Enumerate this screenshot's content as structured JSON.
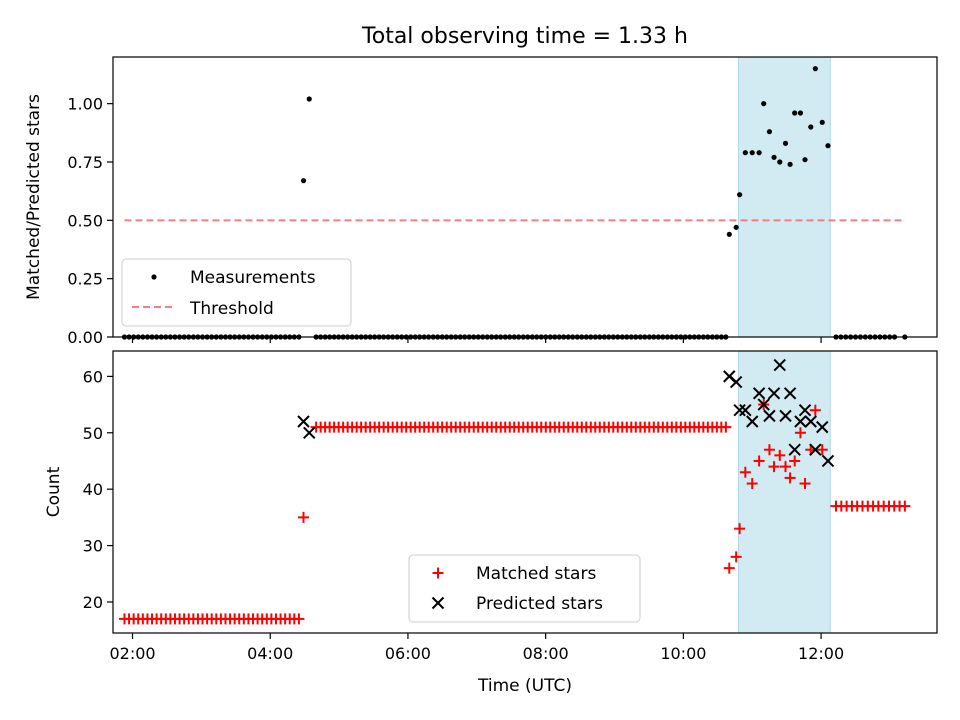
{
  "chart_data": [
    {
      "type": "scatter",
      "title": "Total observing time = 1.33 h",
      "ylabel": "Matched/Predicted stars",
      "xlabel": "",
      "xlim": [
        "01:43",
        "13:41"
      ],
      "ylim": [
        0,
        1.2
      ],
      "x_ticks": [
        "02:00",
        "04:00",
        "06:00",
        "08:00",
        "10:00",
        "12:00"
      ],
      "y_ticks": [
        "0.00",
        "0.25",
        "0.50",
        "0.75",
        "1.00"
      ],
      "x_tick_values": [
        "02:00",
        "04:00",
        "06:00",
        "08:00",
        "10:00",
        "12:00"
      ],
      "y_tick_values": [
        0,
        0.25,
        0.5,
        0.75,
        1.0
      ],
      "highlight_span": [
        "10:48",
        "12:08"
      ],
      "threshold": {
        "name": "Threshold",
        "y": 0.5,
        "x_range": [
          "01:53",
          "13:13"
        ],
        "color": "#f08080",
        "style": "dashed"
      },
      "legend": {
        "location": "lower-left",
        "entries": [
          "Measurements",
          "Threshold"
        ]
      },
      "series": [
        {
          "name": "Measurements",
          "marker": "dot",
          "color": "#000000",
          "zero_x_ranges": [
            [
              "01:53",
              "04:25",
              39
            ],
            [
              "04:40",
              "10:37",
              92
            ],
            [
              "12:13",
              "13:04",
              13
            ]
          ],
          "zero_points": [
            "13:13"
          ],
          "points": [
            [
              "04:29",
              0.67
            ],
            [
              "04:34",
              1.02
            ],
            [
              "10:40",
              0.44
            ],
            [
              "10:46",
              0.47
            ],
            [
              "10:49",
              0.61
            ],
            [
              "10:54",
              0.79
            ],
            [
              "11:00",
              0.79
            ],
            [
              "11:06",
              0.79
            ],
            [
              "11:10",
              1.0
            ],
            [
              "11:15",
              0.88
            ],
            [
              "11:19",
              0.77
            ],
            [
              "11:24",
              0.75
            ],
            [
              "11:29",
              0.83
            ],
            [
              "11:33",
              0.74
            ],
            [
              "11:37",
              0.96
            ],
            [
              "11:42",
              0.96
            ],
            [
              "11:46",
              0.76
            ],
            [
              "11:51",
              0.9
            ],
            [
              "11:55",
              1.15
            ],
            [
              "12:01",
              0.92
            ],
            [
              "12:06",
              0.82
            ]
          ]
        }
      ]
    },
    {
      "type": "scatter",
      "title": "",
      "ylabel": "Count",
      "xlabel": "Time (UTC)",
      "xlim": [
        "01:43",
        "13:41"
      ],
      "ylim": [
        14.5,
        64.5
      ],
      "x_ticks": [
        "02:00",
        "04:00",
        "06:00",
        "08:00",
        "10:00",
        "12:00"
      ],
      "y_ticks": [
        "20",
        "30",
        "40",
        "50",
        "60"
      ],
      "x_tick_values": [
        "02:00",
        "04:00",
        "06:00",
        "08:00",
        "10:00",
        "12:00"
      ],
      "y_tick_values": [
        20,
        30,
        40,
        50,
        60
      ],
      "highlight_span": [
        "10:48",
        "12:08"
      ],
      "legend": {
        "location": "lower-center",
        "entries": [
          "Matched stars",
          "Predicted stars"
        ]
      },
      "series": [
        {
          "name": "Matched stars",
          "marker": "plus",
          "color": "#ff0000",
          "constant_runs": [
            {
              "from": "01:53",
              "to": "04:25",
              "count": 39,
              "y": 17
            },
            {
              "from": "04:40",
              "to": "10:37",
              "count": 92,
              "y": 51
            },
            {
              "from": "12:13",
              "to": "13:13",
              "count": 14,
              "y": 37
            }
          ],
          "points": [
            [
              "04:29",
              35
            ],
            [
              "10:40",
              26
            ],
            [
              "10:46",
              28
            ],
            [
              "10:49",
              33
            ],
            [
              "10:54",
              43
            ],
            [
              "11:00",
              41
            ],
            [
              "11:06",
              45
            ],
            [
              "11:10",
              55
            ],
            [
              "11:15",
              47
            ],
            [
              "11:19",
              44
            ],
            [
              "11:24",
              46
            ],
            [
              "11:29",
              44
            ],
            [
              "11:33",
              42
            ],
            [
              "11:37",
              45
            ],
            [
              "11:42",
              50
            ],
            [
              "11:46",
              41
            ],
            [
              "11:51",
              47
            ],
            [
              "11:55",
              54
            ],
            [
              "12:01",
              47
            ]
          ]
        },
        {
          "name": "Predicted stars",
          "marker": "x",
          "color": "#000000",
          "points": [
            [
              "04:29",
              52
            ],
            [
              "04:34",
              50
            ],
            [
              "10:40",
              60
            ],
            [
              "10:46",
              59
            ],
            [
              "10:49",
              54
            ],
            [
              "10:54",
              54
            ],
            [
              "11:00",
              52
            ],
            [
              "11:06",
              57
            ],
            [
              "11:10",
              55
            ],
            [
              "11:15",
              53
            ],
            [
              "11:19",
              57
            ],
            [
              "11:24",
              62
            ],
            [
              "11:29",
              53
            ],
            [
              "11:33",
              57
            ],
            [
              "11:37",
              47
            ],
            [
              "11:42",
              52
            ],
            [
              "11:46",
              54
            ],
            [
              "11:51",
              52
            ],
            [
              "11:55",
              47
            ],
            [
              "12:01",
              51
            ],
            [
              "12:06",
              45
            ]
          ]
        }
      ]
    }
  ],
  "colors": {
    "span": "#add8e6",
    "threshold": "#f08080",
    "matched": "#ff0000",
    "predicted": "#000000",
    "measurement": "#000000"
  }
}
